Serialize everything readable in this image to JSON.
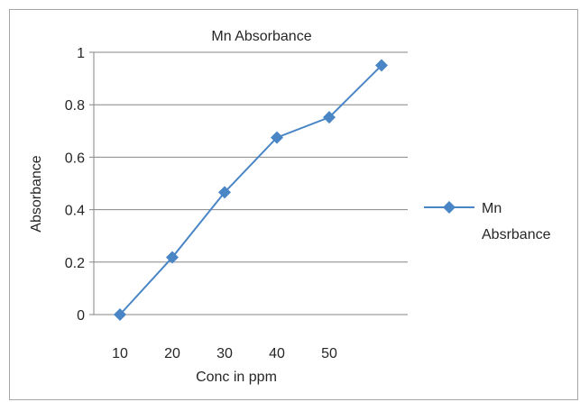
{
  "chart_data": {
    "type": "line",
    "title": "Mn Absorbance",
    "xlabel": "Conc in ppm",
    "ylabel": "Absorbance",
    "categories": [
      "10",
      "20",
      "30",
      "40",
      "50",
      ""
    ],
    "ylim": [
      0,
      1
    ],
    "yticks": [
      "0",
      "0.2",
      "0.4",
      "0.6",
      "0.8",
      "1"
    ],
    "grid": "horizontal",
    "legend_position": "right",
    "series": [
      {
        "name": "Mn Absrbance",
        "color": "#4a86c6",
        "marker": "diamond",
        "values": [
          0.0,
          0.218,
          0.466,
          0.675,
          0.752,
          0.95
        ]
      }
    ]
  }
}
